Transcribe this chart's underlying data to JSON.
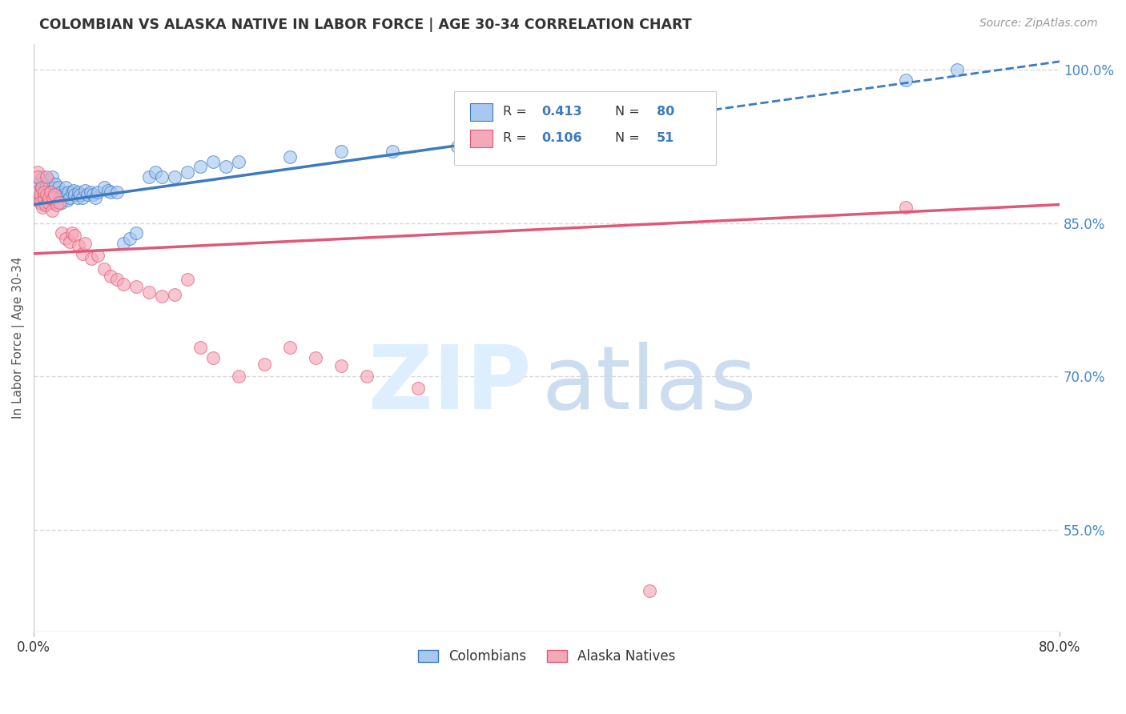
{
  "title": "COLOMBIAN VS ALASKA NATIVE IN LABOR FORCE | AGE 30-34 CORRELATION CHART",
  "source": "Source: ZipAtlas.com",
  "ylabel": "In Labor Force | Age 30-34",
  "xlim": [
    0.0,
    0.8
  ],
  "ylim": [
    0.45,
    1.025
  ],
  "ytick_positions": [
    0.55,
    0.7,
    0.85,
    1.0
  ],
  "yticklabels": [
    "55.0%",
    "70.0%",
    "85.0%",
    "100.0%"
  ],
  "blue_R": 0.413,
  "blue_N": 80,
  "pink_R": 0.106,
  "pink_N": 51,
  "blue_color": "#a8c8f0",
  "pink_color": "#f5a8b8",
  "blue_line_color": "#3d7abf",
  "pink_line_color": "#e05878",
  "legend_label_blue": "Colombians",
  "legend_label_pink": "Alaska Natives",
  "title_color": "#333333",
  "source_color": "#999999",
  "axis_label_color": "#555555",
  "tick_label_color_y": "#4488cc",
  "tick_label_color_x": "#333333",
  "grid_color": "#d8d8d8",
  "blue_scatter_x": [
    0.002,
    0.003,
    0.004,
    0.004,
    0.005,
    0.005,
    0.005,
    0.006,
    0.006,
    0.007,
    0.007,
    0.007,
    0.008,
    0.008,
    0.009,
    0.009,
    0.01,
    0.01,
    0.01,
    0.011,
    0.011,
    0.012,
    0.012,
    0.013,
    0.013,
    0.014,
    0.014,
    0.015,
    0.015,
    0.016,
    0.016,
    0.017,
    0.018,
    0.018,
    0.019,
    0.02,
    0.021,
    0.022,
    0.023,
    0.025,
    0.026,
    0.027,
    0.028,
    0.03,
    0.031,
    0.032,
    0.034,
    0.035,
    0.036,
    0.038,
    0.04,
    0.042,
    0.044,
    0.046,
    0.048,
    0.05,
    0.055,
    0.058,
    0.06,
    0.065,
    0.07,
    0.075,
    0.08,
    0.09,
    0.095,
    0.1,
    0.11,
    0.12,
    0.13,
    0.14,
    0.15,
    0.16,
    0.2,
    0.24,
    0.28,
    0.33,
    0.38,
    0.43,
    0.68,
    0.72
  ],
  "blue_scatter_y": [
    0.88,
    0.878,
    0.882,
    0.888,
    0.875,
    0.893,
    0.878,
    0.87,
    0.885,
    0.872,
    0.88,
    0.895,
    0.878,
    0.868,
    0.885,
    0.875,
    0.88,
    0.87,
    0.888,
    0.875,
    0.892,
    0.878,
    0.885,
    0.87,
    0.88,
    0.875,
    0.895,
    0.878,
    0.87,
    0.885,
    0.875,
    0.888,
    0.87,
    0.878,
    0.885,
    0.875,
    0.88,
    0.87,
    0.878,
    0.885,
    0.872,
    0.88,
    0.875,
    0.88,
    0.882,
    0.878,
    0.875,
    0.88,
    0.878,
    0.875,
    0.882,
    0.878,
    0.88,
    0.878,
    0.875,
    0.88,
    0.885,
    0.882,
    0.88,
    0.88,
    0.83,
    0.835,
    0.84,
    0.895,
    0.9,
    0.895,
    0.895,
    0.9,
    0.905,
    0.91,
    0.905,
    0.91,
    0.915,
    0.92,
    0.92,
    0.925,
    0.93,
    0.935,
    0.99,
    1.0
  ],
  "pink_scatter_x": [
    0.002,
    0.003,
    0.003,
    0.004,
    0.005,
    0.005,
    0.006,
    0.007,
    0.008,
    0.008,
    0.009,
    0.01,
    0.01,
    0.011,
    0.012,
    0.013,
    0.014,
    0.015,
    0.016,
    0.018,
    0.02,
    0.022,
    0.025,
    0.028,
    0.03,
    0.032,
    0.035,
    0.038,
    0.04,
    0.045,
    0.05,
    0.055,
    0.06,
    0.065,
    0.07,
    0.08,
    0.09,
    0.1,
    0.11,
    0.12,
    0.13,
    0.14,
    0.16,
    0.18,
    0.2,
    0.22,
    0.24,
    0.26,
    0.3,
    0.68,
    0.48
  ],
  "pink_scatter_y": [
    0.88,
    0.9,
    0.895,
    0.872,
    0.878,
    0.87,
    0.885,
    0.865,
    0.875,
    0.88,
    0.868,
    0.878,
    0.895,
    0.87,
    0.875,
    0.88,
    0.862,
    0.875,
    0.878,
    0.868,
    0.87,
    0.84,
    0.835,
    0.832,
    0.84,
    0.838,
    0.828,
    0.82,
    0.83,
    0.815,
    0.818,
    0.805,
    0.798,
    0.795,
    0.79,
    0.788,
    0.782,
    0.778,
    0.78,
    0.795,
    0.728,
    0.718,
    0.7,
    0.712,
    0.728,
    0.718,
    0.71,
    0.7,
    0.688,
    0.865,
    0.49
  ]
}
